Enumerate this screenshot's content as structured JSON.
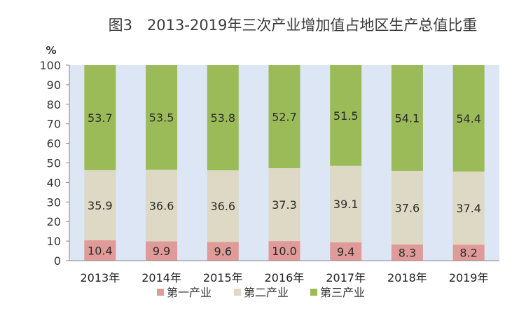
{
  "chart_data": {
    "type": "bar",
    "stacked": true,
    "title": "图3　2013-2019年三次产业增加值占地区生产总值比重",
    "ylabel": "%",
    "ylim": [
      0,
      100
    ],
    "yticks": [
      0,
      10,
      20,
      30,
      40,
      50,
      60,
      70,
      80,
      90,
      100
    ],
    "categories": [
      "2013年",
      "2014年",
      "2015年",
      "2016年",
      "2017年",
      "2018年",
      "2019年"
    ],
    "series": [
      {
        "name": "第一产业",
        "color": "#e09a98",
        "values": [
          10.4,
          9.9,
          9.6,
          10.0,
          9.4,
          8.3,
          8.2
        ]
      },
      {
        "name": "第二产业",
        "color": "#ddd9c4",
        "values": [
          35.9,
          36.6,
          36.6,
          37.3,
          39.1,
          37.6,
          37.4
        ]
      },
      {
        "name": "第三产业",
        "color": "#9bbb59",
        "values": [
          53.7,
          53.5,
          53.8,
          52.7,
          51.5,
          54.1,
          54.4
        ]
      }
    ],
    "plot_background": "#dce6f5",
    "legend_position": "bottom",
    "data_labels": true
  }
}
